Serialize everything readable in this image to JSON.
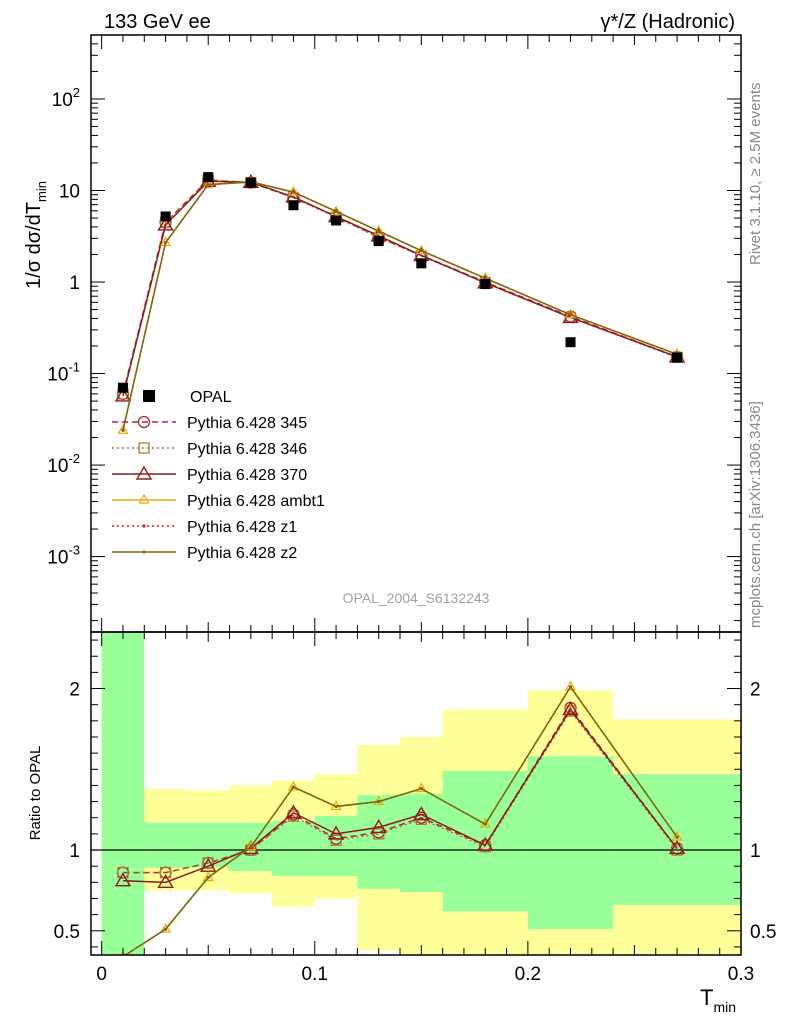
{
  "header": {
    "left": "133 GeV ee",
    "right_main": "γ*/Z (Hadronic)"
  },
  "side_labels": {
    "rivet": "Rivet 3.1.10, ≥ 2.5M events",
    "mcplots": "mcplots.cern.ch [arXiv:1306.3436]"
  },
  "analysis_id": "OPAL_2004_S6132243",
  "colors": {
    "band_green": "#99ff99",
    "band_yellow": "#ffff99",
    "p345": "#b4253c",
    "p346": "#a87c3c",
    "p370": "#8c1a1a",
    "ambt1": "#f0a800",
    "z1": "#e02020",
    "z2": "#7a6a14"
  },
  "chart_data": [
    {
      "type": "line",
      "panel": "main",
      "ylabel": "1/σ dσ/dT_min",
      "yscale": "log",
      "xlim": [
        -0.005,
        0.3
      ],
      "ylim": [
        0.00015,
        500
      ],
      "y_ticks": [
        {
          "value": 0.001,
          "label": "10^-3"
        },
        {
          "value": 0.01,
          "label": "10^-2"
        },
        {
          "value": 0.1,
          "label": "10^-1"
        },
        {
          "value": 1,
          "label": "1"
        },
        {
          "value": 10,
          "label": "10"
        },
        {
          "value": 100,
          "label": "10^2"
        }
      ],
      "legend_position": "middle-left",
      "x": [
        0.01,
        0.03,
        0.05,
        0.07,
        0.09,
        0.11,
        0.13,
        0.15,
        0.18,
        0.22,
        0.27
      ],
      "data": {
        "name": "OPAL",
        "values": [
          0.07,
          5.2,
          14.0,
          12.2,
          6.9,
          4.7,
          2.8,
          1.6,
          0.95,
          0.22,
          0.15
        ]
      },
      "series": [
        {
          "name": "Pythia 6.428 345",
          "color_key": "p345",
          "marker": "circle",
          "dash": "dashed",
          "values": [
            0.06,
            4.5,
            13.0,
            12.2,
            8.4,
            5.2,
            3.1,
            1.95,
            1.0,
            0.42,
            0.152
          ]
        },
        {
          "name": "Pythia 6.428 346",
          "color_key": "p346",
          "marker": "square",
          "dash": "dotted",
          "values": [
            0.06,
            4.5,
            13.0,
            12.2,
            8.3,
            5.1,
            3.05,
            1.92,
            0.98,
            0.41,
            0.15
          ]
        },
        {
          "name": "Pythia 6.428 370",
          "color_key": "p370",
          "marker": "triangle",
          "dash": "solid",
          "values": [
            0.057,
            4.2,
            12.6,
            12.3,
            8.5,
            5.2,
            3.2,
            1.95,
            0.98,
            0.41,
            0.152
          ]
        },
        {
          "name": "Pythia 6.428 ambt1",
          "color_key": "ambt1",
          "marker": "triangle-small",
          "dash": "solid",
          "values": [
            0.024,
            2.7,
            11.6,
            12.4,
            9.6,
            5.9,
            3.6,
            2.2,
            1.1,
            0.44,
            0.162
          ]
        },
        {
          "name": "Pythia 6.428 z1",
          "color_key": "z1",
          "marker": "dot",
          "dash": "dotted",
          "values": [
            0.024,
            2.7,
            11.6,
            12.4,
            9.6,
            5.9,
            3.6,
            2.2,
            1.1,
            0.44,
            0.162
          ]
        },
        {
          "name": "Pythia 6.428 z2",
          "color_key": "z2",
          "marker": "dot",
          "dash": "solid",
          "values": [
            0.024,
            2.7,
            11.6,
            12.4,
            9.6,
            5.9,
            3.6,
            2.2,
            1.1,
            0.44,
            0.162
          ]
        }
      ]
    },
    {
      "type": "line",
      "panel": "ratio",
      "ylabel": "Ratio to OPAL",
      "xlabel": "T_min",
      "xlim": [
        -0.005,
        0.3
      ],
      "ylim": [
        0.35,
        2.35
      ],
      "x_ticks": [
        {
          "value": 0,
          "label": "0"
        },
        {
          "value": 0.1,
          "label": "0.1"
        },
        {
          "value": 0.2,
          "label": "0.2"
        },
        {
          "value": 0.3,
          "label": "0.3"
        }
      ],
      "y_ticks": [
        {
          "value": 0.5,
          "label": "0.5"
        },
        {
          "value": 1,
          "label": "1"
        },
        {
          "value": 2,
          "label": "2"
        }
      ],
      "bins": [
        0,
        0.02,
        0.04,
        0.06,
        0.08,
        0.1,
        0.12,
        0.14,
        0.16,
        0.2,
        0.24,
        0.3
      ],
      "uncertainty_bands": {
        "stat_sys": {
          "low": [
            0.35,
            0.75,
            0.75,
            0.73,
            0.65,
            0.7,
            0.38,
            0.35,
            0.35,
            0.35,
            0.35
          ],
          "high": [
            2.35,
            1.38,
            1.37,
            1.4,
            1.43,
            1.47,
            1.65,
            1.7,
            1.87,
            1.99,
            1.81
          ]
        },
        "stat": {
          "low": [
            0.35,
            0.89,
            0.89,
            0.87,
            0.84,
            0.84,
            0.76,
            0.74,
            0.62,
            0.51,
            0.66
          ],
          "high": [
            2.35,
            1.17,
            1.17,
            1.17,
            1.18,
            1.21,
            1.34,
            1.35,
            1.49,
            1.58,
            1.47
          ]
        }
      },
      "x": [
        0.01,
        0.03,
        0.05,
        0.07,
        0.09,
        0.11,
        0.13,
        0.15,
        0.18,
        0.22,
        0.27
      ],
      "series": [
        {
          "name": "Pythia 6.428 345",
          "values": [
            0.86,
            0.86,
            0.92,
            1.0,
            1.22,
            1.07,
            1.11,
            1.2,
            1.03,
            1.88,
            1.01
          ]
        },
        {
          "name": "Pythia 6.428 346",
          "values": [
            0.86,
            0.86,
            0.92,
            1.0,
            1.21,
            1.06,
            1.1,
            1.19,
            1.02,
            1.86,
            1.0
          ]
        },
        {
          "name": "Pythia 6.428 370",
          "values": [
            0.81,
            0.8,
            0.9,
            1.01,
            1.23,
            1.1,
            1.14,
            1.22,
            1.03,
            1.87,
            1.01
          ]
        },
        {
          "name": "Pythia 6.428 ambt1",
          "values": [
            0.34,
            0.51,
            0.83,
            1.02,
            1.39,
            1.27,
            1.3,
            1.38,
            1.16,
            2.01,
            1.08
          ]
        },
        {
          "name": "Pythia 6.428 z1",
          "values": [
            0.34,
            0.51,
            0.83,
            1.02,
            1.39,
            1.27,
            1.3,
            1.38,
            1.16,
            2.01,
            1.08
          ]
        },
        {
          "name": "Pythia 6.428 z2",
          "values": [
            0.34,
            0.51,
            0.83,
            1.02,
            1.39,
            1.27,
            1.3,
            1.38,
            1.16,
            2.01,
            1.08
          ]
        }
      ]
    }
  ]
}
